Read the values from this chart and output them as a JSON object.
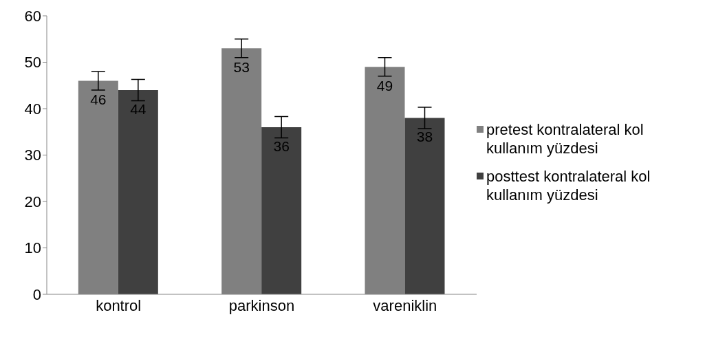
{
  "chart_data": {
    "type": "bar",
    "categories": [
      "kontrol",
      "parkinson",
      "vareniklin"
    ],
    "series": [
      {
        "name": "pretest kontralateral kol kullanım yüzdesi",
        "color": "#808080",
        "values": [
          46,
          53,
          49
        ],
        "errors": [
          2,
          2,
          2
        ]
      },
      {
        "name": "posttest kontralateral kol kullanım yüzdesi",
        "color": "#404040",
        "values": [
          44,
          36,
          38
        ],
        "errors": [
          2.3,
          2.3,
          2.3
        ]
      }
    ],
    "ylim": [
      0,
      60
    ],
    "yticks": [
      0,
      10,
      20,
      30,
      40,
      50,
      60
    ],
    "grid": false,
    "legend": "right",
    "data_labels": true
  }
}
